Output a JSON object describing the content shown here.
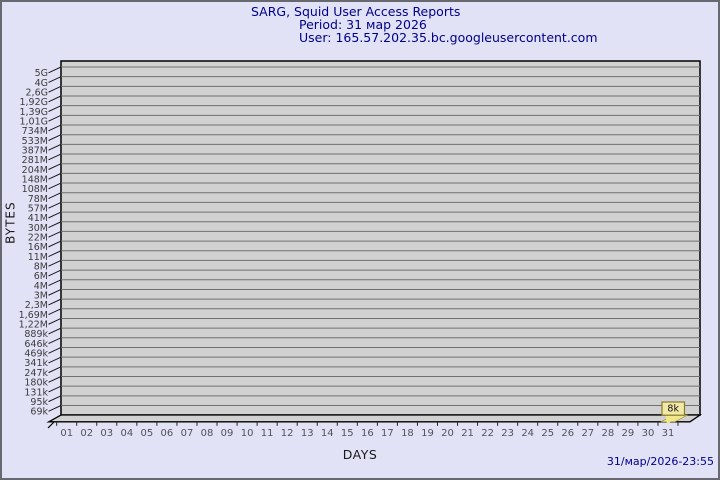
{
  "chart_data": {
    "type": "bar",
    "title": "SARG, Squid User Access Reports",
    "subtitle_period": "Period: 31 мар 2026",
    "subtitle_user": "User: 165.57.202.35.bc.googleusercontent.com",
    "xlabel": "DAYS",
    "ylabel": "BYTES",
    "footer_timestamp": "31/мар/2026-23:55",
    "y_scale": "logarithmic",
    "grid": true,
    "legend_position": "none",
    "categories": [
      "01",
      "02",
      "03",
      "04",
      "05",
      "06",
      "07",
      "08",
      "09",
      "10",
      "11",
      "12",
      "13",
      "14",
      "15",
      "16",
      "17",
      "18",
      "19",
      "20",
      "21",
      "22",
      "23",
      "24",
      "25",
      "26",
      "27",
      "28",
      "29",
      "30",
      "31"
    ],
    "values": [
      0,
      0,
      0,
      0,
      0,
      0,
      0,
      0,
      0,
      0,
      0,
      0,
      0,
      0,
      0,
      0,
      0,
      0,
      0,
      0,
      0,
      0,
      0,
      0,
      0,
      0,
      0,
      0,
      0,
      0,
      8000
    ],
    "annotation": {
      "category": "31",
      "label": "8k"
    },
    "y_tick_labels": [
      "5G",
      "4G",
      "2,6G",
      "1,92G",
      "1,39G",
      "1,01G",
      "734M",
      "533M",
      "387M",
      "281M",
      "204M",
      "148M",
      "108M",
      "78M",
      "57M",
      "41M",
      "30M",
      "22M",
      "16M",
      "11M",
      "8M",
      "6M",
      "4M",
      "3M",
      "2,3M",
      "1,69M",
      "1,22M",
      "889k",
      "646k",
      "469k",
      "341k",
      "247k",
      "180k",
      "131k",
      "95k",
      "69k"
    ],
    "ylim_labels": [
      "69k",
      "5G"
    ],
    "colors": {
      "background": "#e2e2f7",
      "frame": "#686870",
      "plot_bg": "#d1d1d1",
      "grid": "#707070",
      "plot_border": "#000000",
      "bar": "#f0e68c",
      "annotation_fill": "#f1e9a5",
      "annotation_border": "#877b2b",
      "title_text": "#00008b",
      "axis_text": "#3c3c3c",
      "day_text": "#52525a"
    }
  }
}
